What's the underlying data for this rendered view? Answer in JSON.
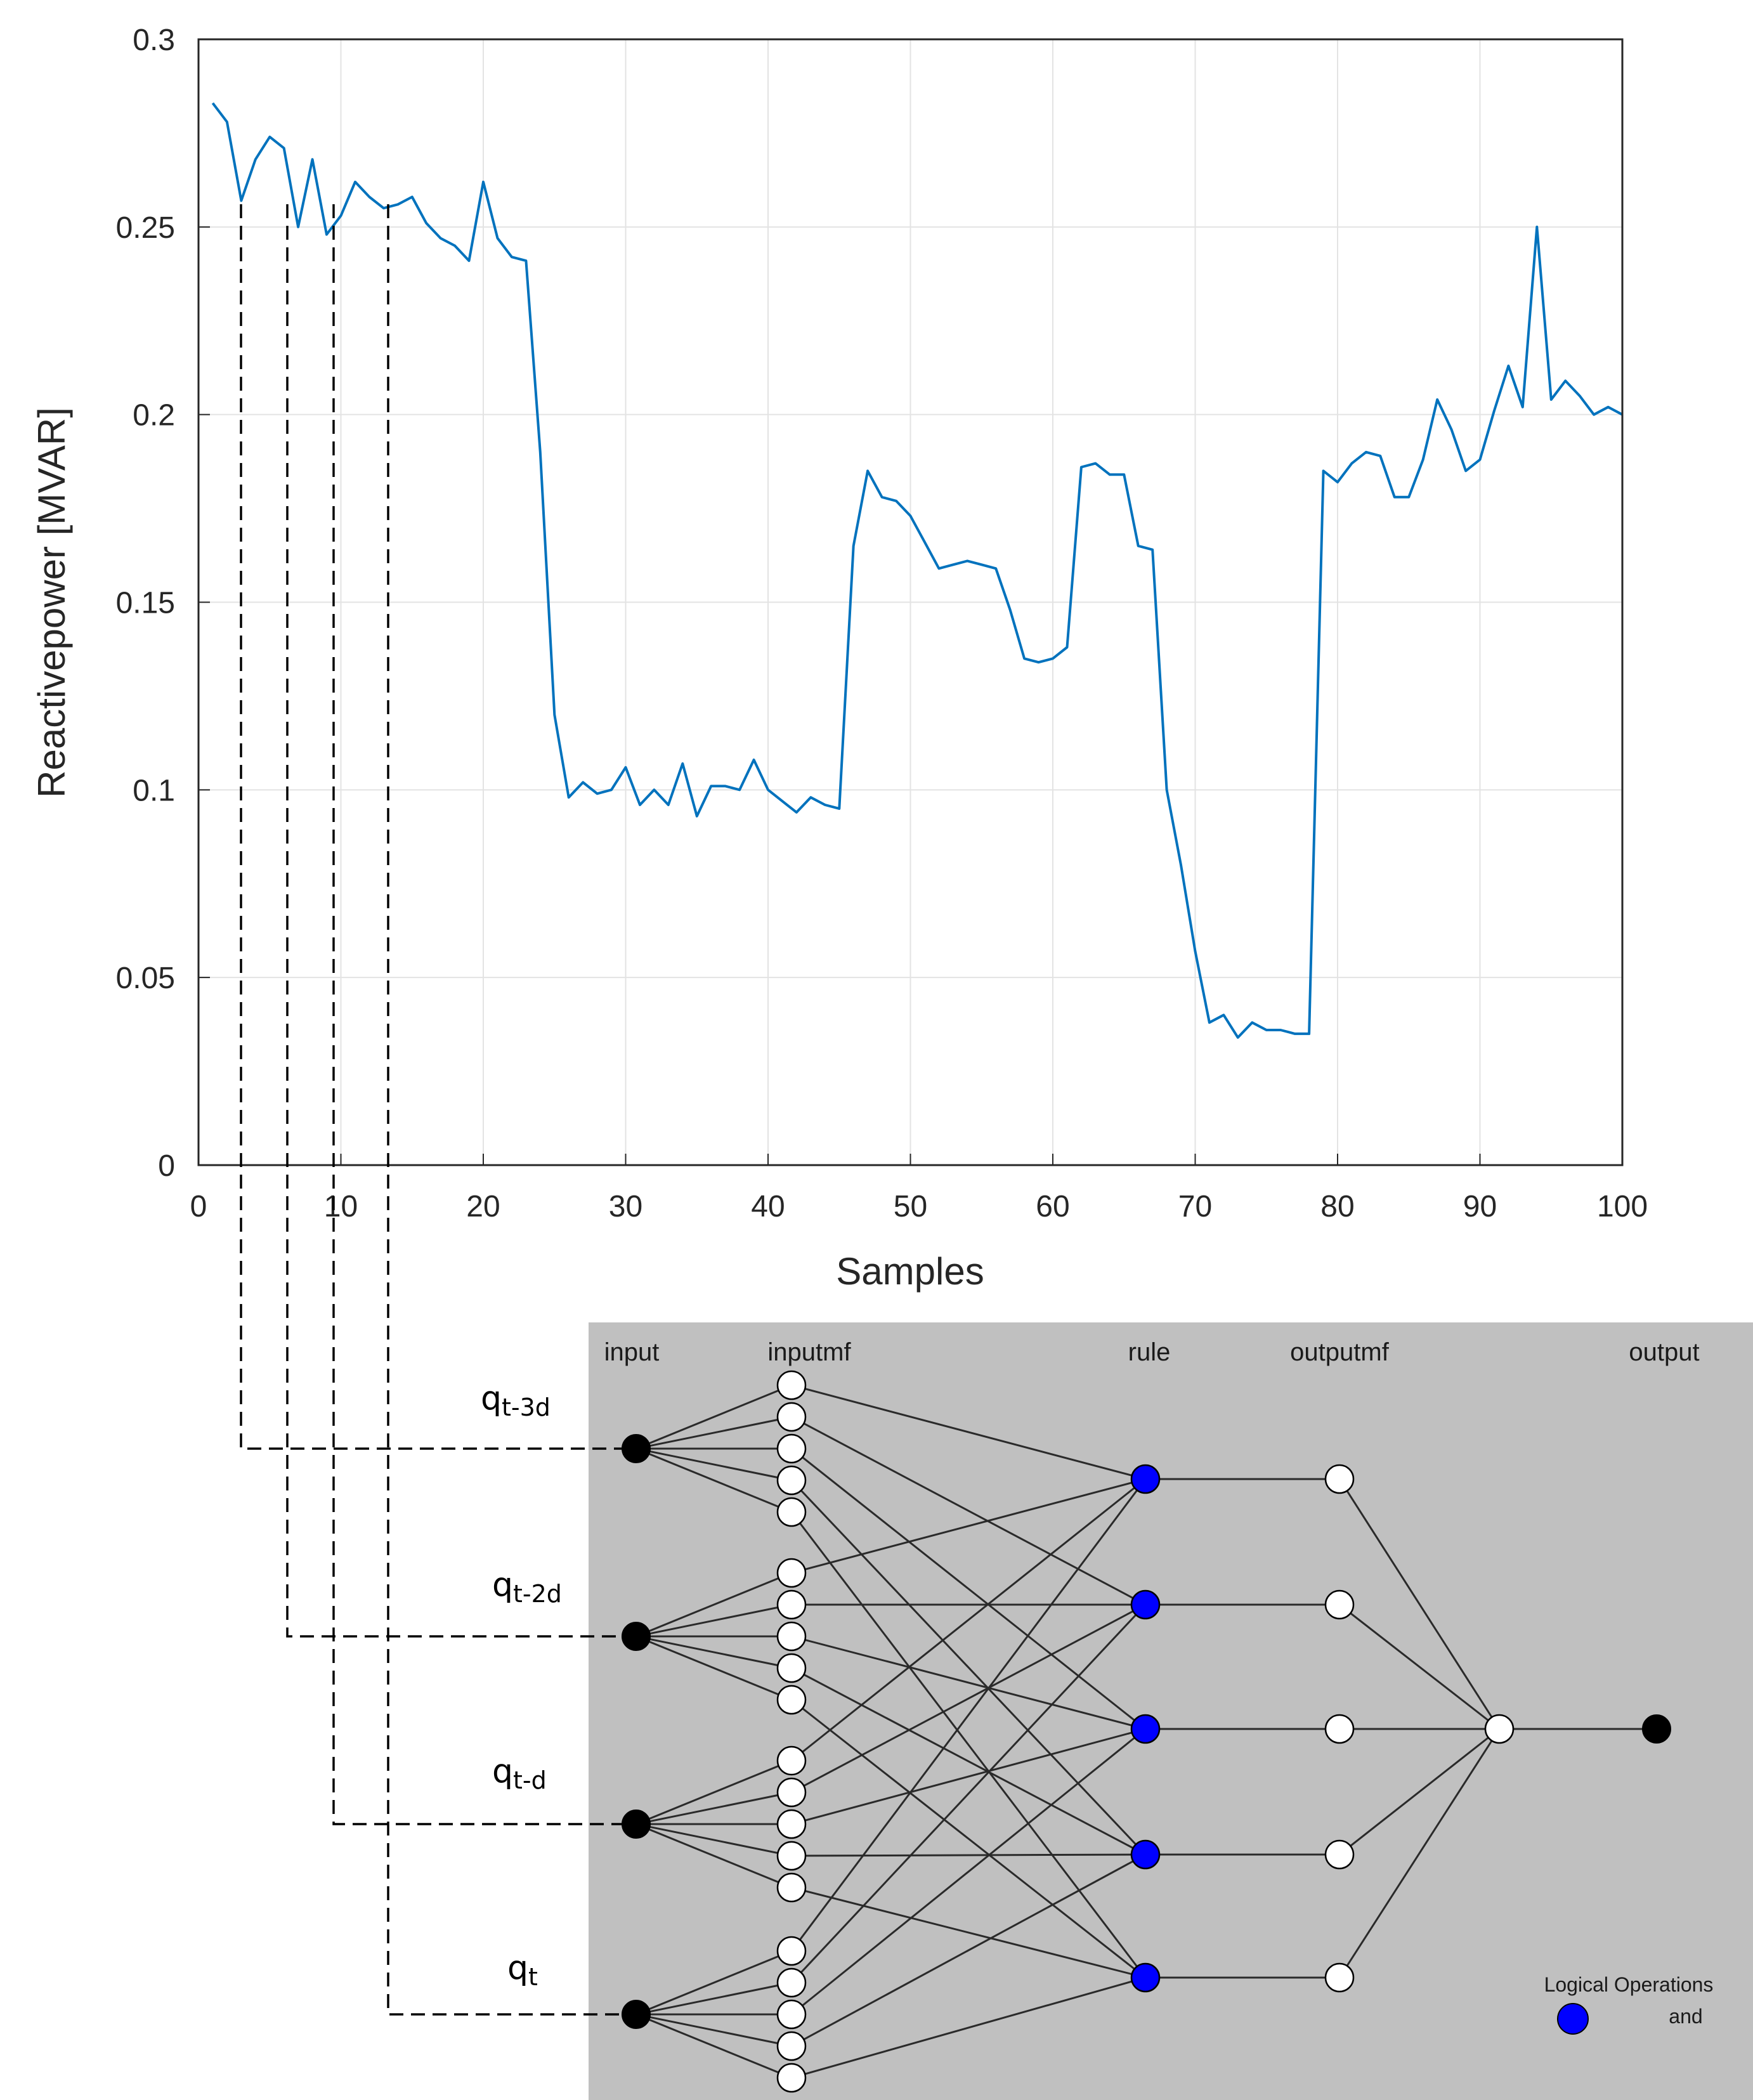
{
  "chart_data": {
    "type": "line",
    "xlabel": "Samples",
    "ylabel": "Reactivepower [MVAR]",
    "xlim": [
      0,
      100
    ],
    "ylim": [
      0,
      0.3
    ],
    "xticks": [
      0,
      10,
      20,
      30,
      40,
      50,
      60,
      70,
      80,
      90,
      100
    ],
    "yticks": [
      0,
      0.05,
      0.1,
      0.15,
      0.2,
      0.25,
      0.3
    ],
    "xtick_labels": [
      "0",
      "10",
      "20",
      "30",
      "40",
      "50",
      "60",
      "70",
      "80",
      "90",
      "100"
    ],
    "ytick_labels": [
      "0",
      "0.05",
      "0.1",
      "0.15",
      "0.2",
      "0.25",
      "0.3"
    ],
    "grid": true,
    "line_color": "#0072BD",
    "series": [
      {
        "x": [
          1,
          2,
          3,
          4,
          5,
          6,
          7,
          8,
          9,
          10,
          11,
          12,
          13,
          14,
          15,
          16,
          17,
          18,
          19,
          20,
          21,
          22,
          23,
          24,
          25,
          26,
          27,
          28,
          29,
          30,
          31,
          32,
          33,
          34,
          35,
          36,
          37,
          38,
          39,
          40,
          41,
          42,
          43,
          44,
          45,
          46,
          47,
          48,
          49,
          50,
          51,
          52,
          53,
          54,
          55,
          56,
          57,
          58,
          59,
          60,
          61,
          62,
          63,
          64,
          65,
          66,
          67,
          68,
          69,
          70,
          71,
          72,
          73,
          74,
          75,
          76,
          77,
          78,
          79,
          80,
          81,
          82,
          83,
          84,
          85,
          86,
          87,
          88,
          89,
          90,
          91,
          92,
          93,
          94,
          95,
          96,
          97,
          98,
          99,
          100
        ],
        "values": [
          0.283,
          0.278,
          0.257,
          0.268,
          0.274,
          0.271,
          0.25,
          0.268,
          0.248,
          0.253,
          0.262,
          0.258,
          0.255,
          0.256,
          0.258,
          0.251,
          0.247,
          0.245,
          0.241,
          0.262,
          0.247,
          0.242,
          0.241,
          0.19,
          0.12,
          0.098,
          0.102,
          0.099,
          0.1,
          0.106,
          0.096,
          0.1,
          0.096,
          0.107,
          0.093,
          0.101,
          0.101,
          0.1,
          0.108,
          0.1,
          0.097,
          0.094,
          0.098,
          0.096,
          0.095,
          0.165,
          0.185,
          0.178,
          0.177,
          0.173,
          0.166,
          0.159,
          0.16,
          0.161,
          0.16,
          0.159,
          0.148,
          0.135,
          0.134,
          0.135,
          0.138,
          0.186,
          0.187,
          0.184,
          0.184,
          0.165,
          0.164,
          0.1,
          0.08,
          0.057,
          0.038,
          0.04,
          0.034,
          0.038,
          0.036,
          0.036,
          0.035,
          0.035,
          0.185,
          0.182,
          0.187,
          0.19,
          0.189,
          0.178,
          0.178,
          0.188,
          0.204,
          0.196,
          0.185,
          0.188,
          0.201,
          0.213,
          0.202,
          0.25,
          0.204,
          0.209,
          0.205,
          0.2,
          0.202,
          0.2
        ]
      }
    ]
  },
  "network": {
    "layer_labels": [
      "input",
      "inputmf",
      "rule",
      "outputmf",
      "output"
    ],
    "input_labels": [
      {
        "base": "q",
        "sub": "t-3d"
      },
      {
        "base": "q",
        "sub": "t-2d"
      },
      {
        "base": "q",
        "sub": "t-d"
      },
      {
        "base": "q",
        "sub": "t"
      }
    ],
    "legend_title": "Logical Operations",
    "legend_item": "and",
    "rule_color": "#0000FF"
  }
}
